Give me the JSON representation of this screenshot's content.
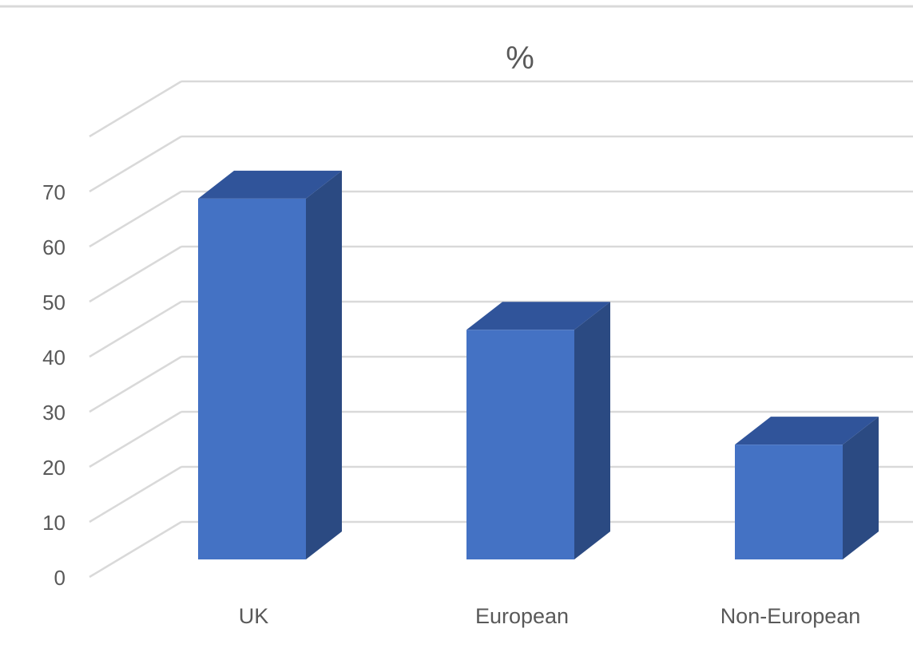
{
  "chart_data": {
    "type": "bar",
    "title": "%",
    "categories": [
      "UK",
      "European",
      "Non-European"
    ],
    "values": [
      66,
      42,
      21
    ],
    "ylim": [
      0,
      70
    ],
    "yticks": [
      0,
      10,
      20,
      30,
      40,
      50,
      60,
      70
    ],
    "xlabel": "",
    "ylabel": "",
    "grid": true,
    "legend": "none",
    "style": "3d-column"
  },
  "colors": {
    "bar_front": "#4472c4",
    "bar_top": "#30549a",
    "bar_side": "#2b4a82",
    "gridline": "#d9d9d9",
    "text": "#595959"
  }
}
